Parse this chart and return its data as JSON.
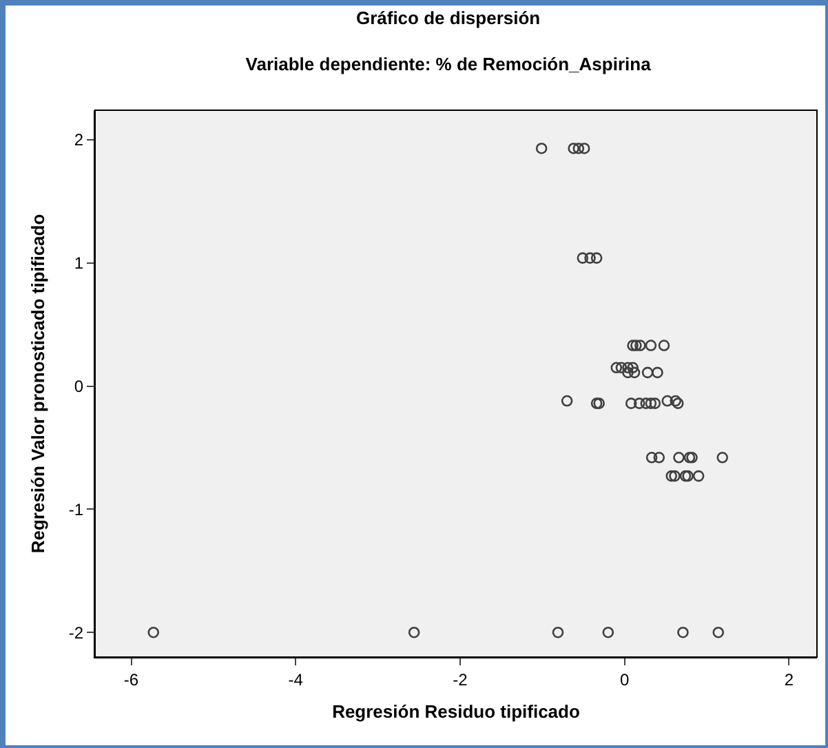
{
  "chart_data": {
    "type": "scatter",
    "title": "Gráfico de dispersión",
    "subtitle": "Variable dependiente: % de Remoción_Aspirina",
    "xlabel": "Regresión Residuo tipificado",
    "ylabel": "Regresión Valor pronosticado tipificado",
    "x": [
      -1.01,
      -0.62,
      -0.56,
      -0.49,
      -0.51,
      -0.42,
      -0.34,
      0.1,
      0.14,
      0.19,
      0.32,
      0.48,
      -0.1,
      -0.04,
      0.04,
      0.1,
      0.04,
      0.12,
      0.28,
      0.4,
      -0.7,
      0.52,
      0.62,
      -0.34,
      -0.31,
      0.08,
      0.18,
      0.26,
      0.32,
      0.37,
      0.65,
      0.33,
      0.42,
      0.66,
      0.79,
      0.82,
      1.19,
      0.57,
      0.61,
      0.74,
      0.77,
      0.9,
      -5.73,
      -2.56,
      -0.81,
      -0.2,
      0.71,
      1.14
    ],
    "series": [
      {
        "color": "#404040",
        "values": [
          1.93,
          1.93,
          1.93,
          1.93,
          1.04,
          1.04,
          1.04,
          0.33,
          0.33,
          0.33,
          0.33,
          0.33,
          0.15,
          0.15,
          0.15,
          0.15,
          0.11,
          0.11,
          0.11,
          0.11,
          -0.12,
          -0.12,
          -0.12,
          -0.14,
          -0.14,
          -0.14,
          -0.14,
          -0.14,
          -0.14,
          -0.14,
          -0.14,
          -0.58,
          -0.58,
          -0.58,
          -0.58,
          -0.58,
          -0.58,
          -0.73,
          -0.73,
          -0.73,
          -0.73,
          -0.73,
          -2,
          -2,
          -2,
          -2,
          -2,
          -2
        ]
      }
    ],
    "xlim": [
      -6.44,
      2.34
    ],
    "xticks": [
      -6,
      -4,
      -2,
      0,
      2
    ],
    "ylim": [
      -2.2,
      2.24
    ],
    "yticks": [
      -2,
      -1,
      0,
      1,
      2
    ],
    "grid": false,
    "marker": "circle"
  }
}
